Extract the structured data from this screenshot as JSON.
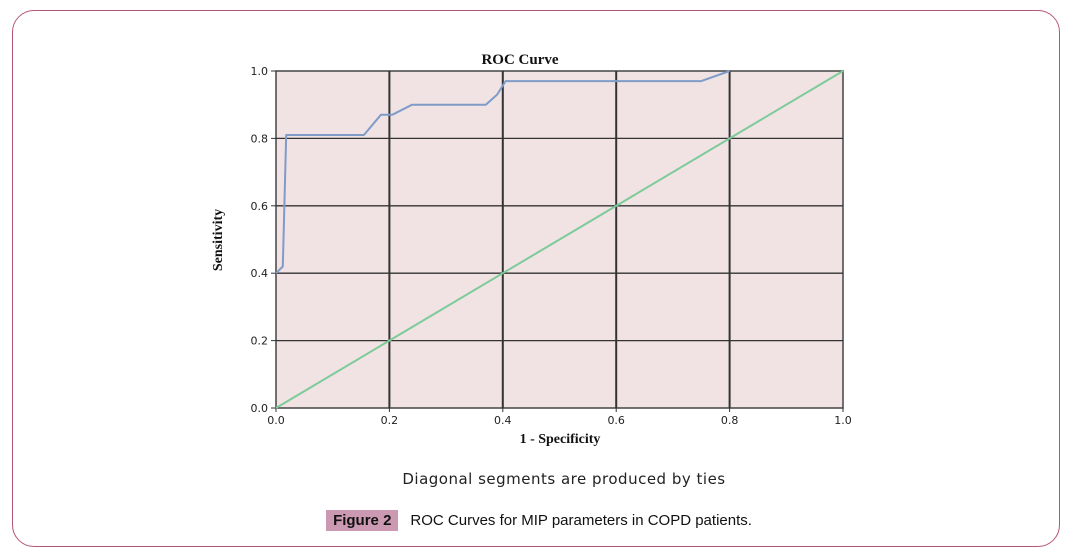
{
  "chart_data": {
    "type": "line",
    "title": "ROC Curve",
    "xlabel": "1 - Specificity",
    "ylabel": "Sensitivity",
    "xlim": [
      0.0,
      1.0
    ],
    "ylim": [
      0.0,
      1.0
    ],
    "x_ticks": [
      "0.0",
      "0.2",
      "0.4",
      "0.6",
      "0.8",
      "1.0"
    ],
    "y_ticks": [
      "0.0",
      "0.2",
      "0.4",
      "0.6",
      "0.8",
      "1.0"
    ],
    "grid": true,
    "series": [
      {
        "color": "#7f9cc8",
        "points": [
          [
            0.0,
            0.4
          ],
          [
            0.012,
            0.42
          ],
          [
            0.018,
            0.81
          ],
          [
            0.155,
            0.81
          ],
          [
            0.185,
            0.87
          ],
          [
            0.205,
            0.87
          ],
          [
            0.24,
            0.9
          ],
          [
            0.37,
            0.9
          ],
          [
            0.39,
            0.93
          ],
          [
            0.405,
            0.97
          ],
          [
            0.75,
            0.97
          ],
          [
            0.8,
            1.0
          ]
        ]
      },
      {
        "color": "#7ccb98",
        "points": [
          [
            0.0,
            0.0
          ],
          [
            1.0,
            1.0
          ]
        ]
      }
    ],
    "plot_background": "#f1e3e4",
    "footnote": "Diagonal segments are produced by ties"
  },
  "caption": {
    "label": "Figure 2",
    "text": "ROC Curves for MIP parameters in COPD patients."
  },
  "colors": {
    "frame_border": "#b5557a",
    "label_bg": "#cc99b3"
  }
}
